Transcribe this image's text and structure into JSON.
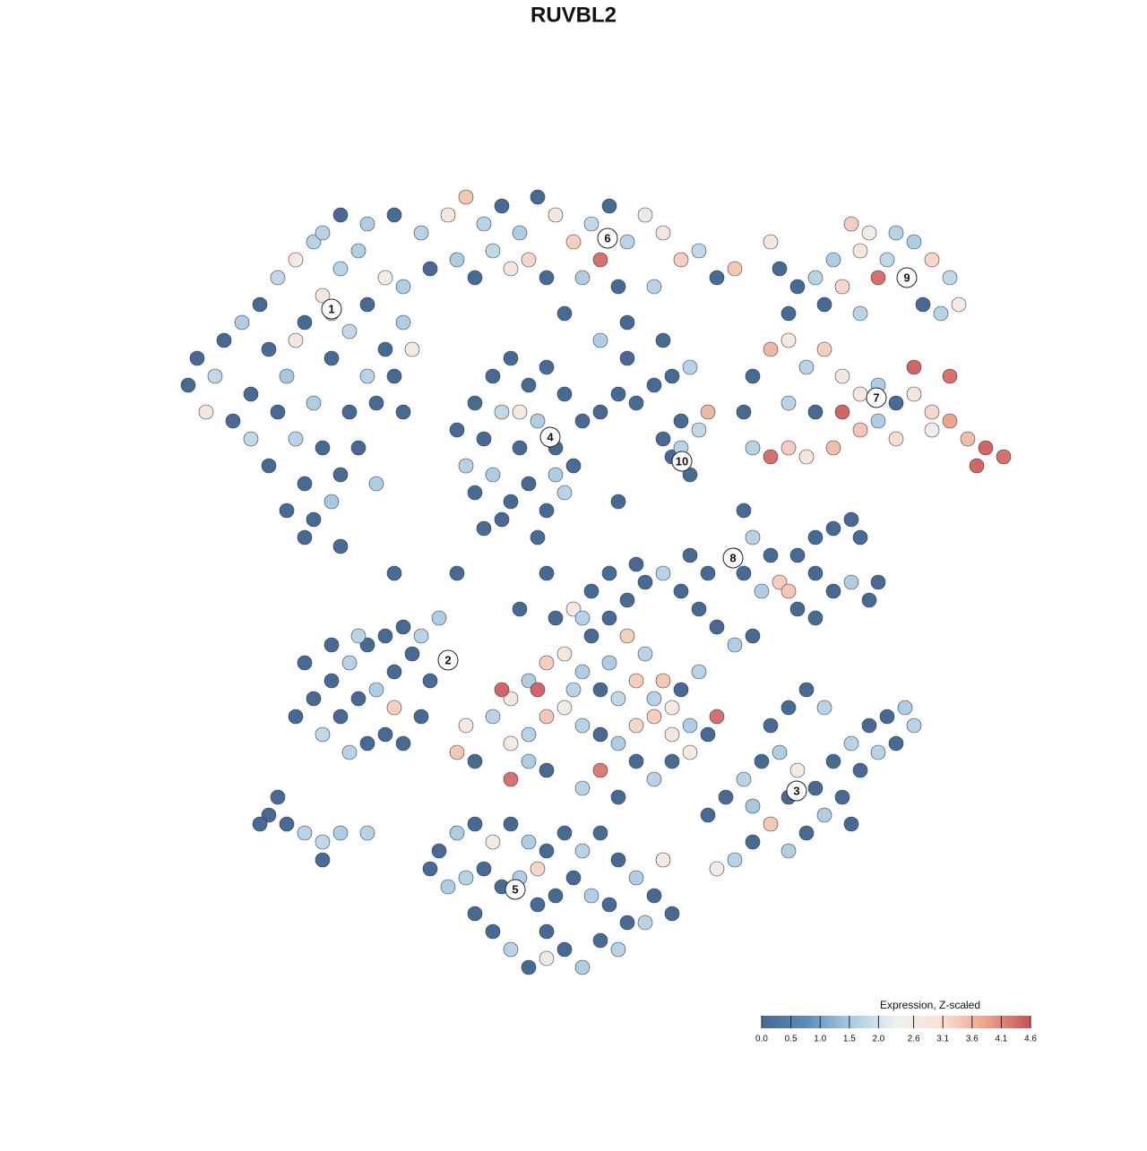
{
  "chart_data": {
    "type": "scatter",
    "title": "RUVBL2",
    "xlim": [
      0,
      128
    ],
    "ylim": [
      0,
      128
    ],
    "x": [
      22,
      24,
      21,
      25,
      27,
      29,
      31,
      33,
      35,
      30,
      32,
      34,
      36,
      38,
      40,
      28,
      31,
      33,
      35,
      37,
      39,
      41,
      43,
      36,
      38,
      34,
      32,
      35,
      37,
      39,
      41,
      43,
      45,
      30,
      28,
      40,
      42,
      44,
      46,
      26,
      23,
      38,
      34,
      42,
      37,
      33,
      47,
      50,
      52,
      54,
      56,
      58,
      60,
      62,
      64,
      66,
      68,
      70,
      72,
      74,
      76,
      78,
      80,
      82,
      48,
      51,
      53,
      57,
      61,
      65,
      69,
      73,
      45,
      55,
      59,
      67,
      63,
      70,
      67,
      70,
      44,
      41,
      38,
      36,
      51,
      53,
      55,
      57,
      59,
      61,
      63,
      65,
      52,
      54,
      56,
      58,
      60,
      62,
      64,
      53,
      55,
      57,
      59,
      61,
      63,
      56,
      60,
      58,
      54,
      62,
      67,
      69,
      71,
      73,
      75,
      77,
      74,
      76,
      78,
      79,
      75,
      77,
      76,
      87,
      89,
      91,
      93,
      94,
      96,
      98,
      99,
      101,
      102,
      104,
      106,
      107,
      105,
      103,
      95,
      97,
      100,
      86,
      92,
      96,
      88,
      84,
      86,
      88,
      90,
      92,
      94,
      96,
      98,
      100,
      102,
      104,
      106,
      108,
      110,
      112,
      109,
      104,
      100,
      96,
      93,
      90,
      88,
      86,
      84,
      91,
      88,
      94,
      98,
      83,
      102,
      106,
      83,
      84,
      86,
      87,
      85,
      83,
      89,
      91,
      93,
      95,
      96,
      91,
      93,
      95,
      97,
      98,
      89,
      91,
      88,
      82,
      79,
      77,
      33,
      35,
      37,
      39,
      41,
      43,
      45,
      47,
      49,
      36,
      38,
      40,
      42,
      44,
      46,
      41,
      43,
      39,
      34,
      37,
      40,
      44,
      48,
      45,
      47,
      55,
      57,
      59,
      61,
      63,
      65,
      67,
      69,
      71,
      73,
      75,
      77,
      79,
      57,
      59,
      61,
      63,
      65,
      67,
      69,
      71,
      73,
      75,
      60,
      64,
      68,
      70,
      72,
      74,
      76,
      78,
      80,
      66,
      68,
      70,
      72,
      74,
      76,
      78,
      80,
      82,
      84,
      66,
      68,
      62,
      64,
      57,
      61,
      65,
      69,
      67,
      71,
      75,
      53,
      56,
      51,
      52,
      59,
      73,
      77,
      79,
      81,
      83,
      85,
      87,
      89,
      91,
      93,
      95,
      97,
      99,
      101,
      96,
      98,
      94,
      92,
      90,
      88,
      86,
      84,
      82,
      80,
      86,
      88,
      90,
      92,
      100,
      102,
      95,
      84,
      88,
      49,
      51,
      53,
      55,
      57,
      59,
      61,
      63,
      65,
      67,
      69,
      71,
      73,
      75,
      52,
      54,
      56,
      58,
      60,
      62,
      64,
      66,
      68,
      70,
      72,
      53,
      55,
      57,
      59,
      61,
      63,
      65,
      67,
      69,
      60,
      61,
      50,
      48,
      74,
      30,
      32,
      34,
      36,
      38,
      41,
      36,
      29,
      31,
      44,
      51,
      58,
      65,
      61,
      74,
      45,
      69,
      71
    ],
    "y": [
      88,
      86,
      85,
      90,
      92,
      94,
      97,
      99,
      101,
      89,
      86,
      92,
      95,
      98,
      100,
      84,
      82,
      79,
      83,
      88,
      91,
      94,
      97,
      78,
      75,
      74,
      71,
      70,
      72,
      82,
      86,
      89,
      92,
      76,
      79,
      78,
      83,
      86,
      89,
      81,
      82,
      67,
      68,
      74,
      93,
      90,
      102,
      104,
      106,
      103,
      105,
      102,
      106,
      104,
      101,
      103,
      105,
      101,
      104,
      102,
      99,
      100,
      97,
      98,
      98,
      99,
      97,
      98,
      97,
      97,
      96,
      96,
      96,
      100,
      99,
      99,
      93,
      92,
      90,
      88,
      104,
      103,
      104,
      102,
      80,
      83,
      86,
      88,
      85,
      87,
      84,
      81,
      76,
      79,
      82,
      78,
      81,
      78,
      76,
      73,
      75,
      72,
      74,
      71,
      73,
      70,
      68,
      82,
      69,
      75,
      82,
      84,
      83,
      85,
      86,
      87,
      79,
      81,
      80,
      82,
      77,
      75,
      78,
      98,
      96,
      97,
      99,
      96,
      100,
      97,
      99,
      97,
      101,
      99,
      97,
      94,
      93,
      94,
      103,
      102,
      102,
      101,
      94,
      93,
      93,
      86,
      89,
      90,
      87,
      89,
      86,
      84,
      85,
      83,
      84,
      82,
      81,
      79,
      78,
      77,
      76,
      80,
      79,
      80,
      78,
      77,
      78,
      77,
      78,
      82,
      83,
      82,
      81,
      82,
      87,
      86,
      71,
      68,
      66,
      63,
      62,
      64,
      66,
      68,
      69,
      70,
      68,
      64,
      62,
      63,
      61,
      63,
      60,
      59,
      62,
      66,
      64,
      66,
      48,
      50,
      52,
      54,
      56,
      57,
      58,
      57,
      59,
      46,
      48,
      50,
      51,
      53,
      55,
      45,
      46,
      44,
      54,
      56,
      57,
      49,
      52,
      45,
      48,
      48,
      50,
      52,
      54,
      55,
      53,
      51,
      50,
      52,
      50,
      49,
      47,
      46,
      45,
      46,
      48,
      49,
      47,
      46,
      45,
      47,
      48,
      46,
      51,
      51,
      54,
      57,
      55,
      52,
      51,
      53,
      48,
      57,
      59,
      61,
      63,
      64,
      62,
      60,
      58,
      56,
      57,
      62,
      64,
      59,
      60,
      41,
      42,
      40,
      39,
      42,
      43,
      43,
      43,
      51,
      44,
      47,
      43,
      41,
      44,
      37,
      39,
      41,
      43,
      44,
      42,
      40,
      43,
      45,
      47,
      48,
      49,
      42,
      44,
      39,
      37,
      35,
      33,
      36,
      34,
      32,
      31,
      47,
      49,
      51,
      49,
      45,
      47,
      36,
      38,
      39,
      33,
      35,
      36,
      34,
      36,
      34,
      33,
      35,
      33,
      35,
      32,
      30,
      28,
      26,
      30,
      31,
      29,
      30,
      31,
      28,
      30,
      28,
      27,
      25,
      25,
      26,
      24,
      22,
      20,
      24,
      22,
      20,
      23,
      22,
      27,
      21,
      29,
      31,
      32,
      37,
      36,
      35,
      34,
      35,
      35,
      32,
      36,
      39,
      64,
      64,
      60,
      59,
      64,
      90,
      82,
      72,
      65
    ],
    "values": [
      0,
      1.8,
      0,
      0,
      1.6,
      0,
      1.8,
      2.7,
      1.7,
      0,
      1.5,
      0,
      2.8,
      1.7,
      1.6,
      0,
      0,
      1.7,
      1.6,
      0,
      1.8,
      0,
      2.6,
      0,
      0,
      0,
      0,
      0,
      1.5,
      0,
      1.7,
      0,
      1.6,
      0,
      1.8,
      0,
      0,
      0,
      2.7,
      0,
      2.8,
      0,
      0,
      1.6,
      1.6,
      2.8,
      1.7,
      2.8,
      3.4,
      1.7,
      0,
      1.6,
      0,
      2.8,
      3.3,
      1.8,
      0,
      1.7,
      2.7,
      2.9,
      3.3,
      1.8,
      0,
      3.4,
      0,
      1.6,
      0,
      2.8,
      0,
      1.6,
      0,
      1.7,
      1.6,
      1.8,
      3.2,
      4.3,
      0,
      0,
      1.6,
      0,
      0,
      1.6,
      0,
      1.7,
      0,
      0,
      0,
      0,
      0,
      0,
      0,
      0,
      1.7,
      0,
      1.8,
      0,
      1.6,
      0,
      0,
      0,
      1.6,
      0,
      0,
      0,
      1.7,
      0,
      0,
      2.7,
      0,
      1.6,
      0,
      0,
      0,
      0,
      0,
      1.7,
      0,
      0,
      1.8,
      3.6,
      0,
      0,
      1.7,
      0,
      0,
      1.7,
      1.6,
      3.2,
      2.7,
      4.3,
      1.8,
      0,
      1.6,
      3.2,
      1.8,
      2.7,
      1.7,
      0,
      3.3,
      2.6,
      1.7,
      2.8,
      0,
      1.7,
      0,
      0,
      3.6,
      2.8,
      1.7,
      3.3,
      2.8,
      2.7,
      1.6,
      0,
      2.9,
      3.2,
      3.8,
      3.5,
      4.4,
      4.3,
      4.4,
      2.6,
      3.1,
      3.4,
      3.5,
      2.8,
      3.3,
      4.3,
      1.7,
      0,
      1.7,
      4.4,
      1.6,
      0,
      4.4,
      4.3,
      0,
      1.7,
      0,
      3.3,
      1.6,
      0,
      0,
      0,
      0,
      0,
      0,
      0,
      0,
      1.6,
      0,
      0,
      0,
      0,
      3.4,
      2.8,
      0,
      0,
      0,
      0,
      0,
      1.7,
      0,
      0,
      0,
      1.7,
      1.6,
      1.8,
      0,
      0,
      1.6,
      0,
      0,
      0,
      0,
      1.7,
      0,
      0,
      1.7,
      3.3,
      0,
      0,
      0,
      1.7,
      2.8,
      1.6,
      3.3,
      2.8,
      1.6,
      0,
      1.8,
      3.3,
      1.7,
      2.7,
      1.6,
      0,
      2.7,
      1.7,
      3.4,
      2.6,
      1.7,
      0,
      1.6,
      3.2,
      3.3,
      2.8,
      4.4,
      1.7,
      1.6,
      3.3,
      1.7,
      3.4,
      0,
      1.7,
      4.3,
      0,
      0,
      0,
      0,
      1.7,
      0,
      0,
      0,
      1.6,
      0,
      0,
      0,
      0,
      2.8,
      4.3,
      0,
      1.7,
      0,
      4.2,
      0,
      0,
      0,
      4.4,
      3.4,
      2.7,
      1.6,
      1.7,
      2.7,
      0,
      0,
      1.7,
      0,
      1.6,
      2.7,
      0,
      0,
      1.7,
      0,
      0,
      1.6,
      0,
      1.7,
      0,
      1.6,
      0,
      1.6,
      3.4,
      0,
      1.7,
      2.6,
      0,
      0,
      0,
      1.7,
      0,
      1.7,
      0,
      1.5,
      0,
      0,
      1.6,
      0,
      2.7,
      0,
      1.6,
      0,
      0,
      1.7,
      0,
      0,
      1.6,
      0,
      0,
      1.7,
      0,
      0,
      1.6,
      3.2,
      0,
      0,
      1.6,
      0,
      0,
      1.7,
      0,
      0,
      1.7,
      0,
      0,
      0,
      1.6,
      0,
      1.7,
      0,
      2.8,
      1.6,
      0,
      2.7,
      0,
      0,
      1.7,
      1.8,
      1.6,
      1.7,
      0,
      0,
      0,
      0,
      0,
      0,
      1.7,
      0,
      0,
      0,
      0,
      0
    ],
    "annotations": [
      {
        "label": "1",
        "x": 37,
        "y": 93.5
      },
      {
        "label": "2",
        "x": 50,
        "y": 54.3
      },
      {
        "label": "3",
        "x": 88.9,
        "y": 39.7
      },
      {
        "label": "4",
        "x": 61.4,
        "y": 79.2
      },
      {
        "label": "5",
        "x": 57.5,
        "y": 28.7
      },
      {
        "label": "6",
        "x": 67.8,
        "y": 101.4
      },
      {
        "label": "7",
        "x": 97.8,
        "y": 83.6
      },
      {
        "label": "8",
        "x": 81.8,
        "y": 65.7
      },
      {
        "label": "9",
        "x": 101.2,
        "y": 97
      },
      {
        "label": "10",
        "x": 76.1,
        "y": 76.5
      }
    ],
    "colorbar_label": "Expression, Z-scaled",
    "clim": [
      0,
      4.6
    ],
    "cticks": [
      {
        "value": 0,
        "label": "0.0"
      },
      0.5,
      {
        "value": 1,
        "label": "1.0"
      },
      1.5,
      {
        "value": 2,
        "label": "2.0"
      },
      2.6,
      3.1,
      3.6,
      4.1,
      4.6
    ],
    "colormap": [
      "#466a93",
      "#5b8cbd",
      "#a9cbe2",
      "#eef1f2",
      "#fbe1d4",
      "#eda388",
      "#c9515b"
    ],
    "point_edge_color": "#2e3a48"
  }
}
